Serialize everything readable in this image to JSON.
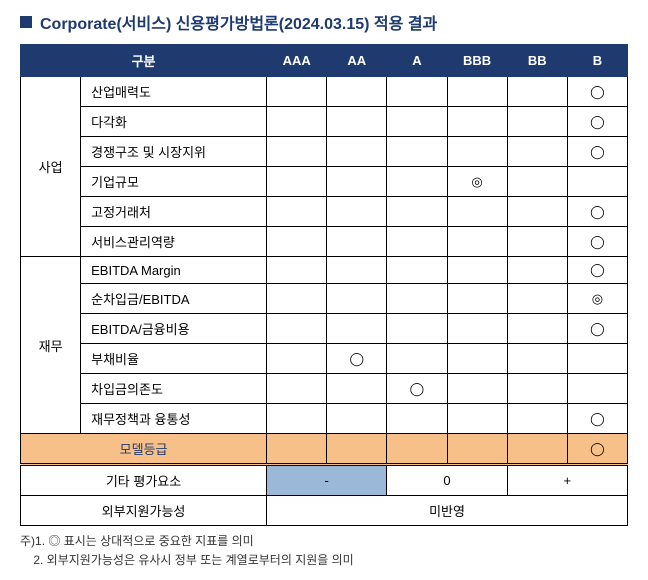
{
  "title": "Corporate(서비스) 신용평가방법론(2024.03.15) 적용 결과",
  "headers": {
    "category": "구분",
    "grades": [
      "AAA",
      "AA",
      "A",
      "BBB",
      "BB",
      "B"
    ]
  },
  "categories": {
    "biz": "사업",
    "fin": "재무"
  },
  "rows": {
    "biz": [
      {
        "label": "산업매력도",
        "marks": [
          "",
          "",
          "",
          "",
          "",
          "◯"
        ]
      },
      {
        "label": "다각화",
        "marks": [
          "",
          "",
          "",
          "",
          "",
          "◯"
        ]
      },
      {
        "label": "경쟁구조 및 시장지위",
        "marks": [
          "",
          "",
          "",
          "",
          "",
          "◯"
        ]
      },
      {
        "label": "기업규모",
        "marks": [
          "",
          "",
          "",
          "◎",
          "",
          ""
        ]
      },
      {
        "label": "고정거래처",
        "marks": [
          "",
          "",
          "",
          "",
          "",
          "◯"
        ]
      },
      {
        "label": "서비스관리역량",
        "marks": [
          "",
          "",
          "",
          "",
          "",
          "◯"
        ]
      }
    ],
    "fin": [
      {
        "label": "EBITDA Margin",
        "marks": [
          "",
          "",
          "",
          "",
          "",
          "◯"
        ]
      },
      {
        "label": "순차입금/EBITDA",
        "marks": [
          "",
          "",
          "",
          "",
          "",
          "◎"
        ]
      },
      {
        "label": "EBITDA/금융비용",
        "marks": [
          "",
          "",
          "",
          "",
          "",
          "◯"
        ]
      },
      {
        "label": "부채비율",
        "marks": [
          "",
          "◯",
          "",
          "",
          "",
          ""
        ]
      },
      {
        "label": "차입금의존도",
        "marks": [
          "",
          "",
          "◯",
          "",
          "",
          ""
        ]
      },
      {
        "label": "재무정책과 융통성",
        "marks": [
          "",
          "",
          "",
          "",
          "",
          "◯"
        ]
      }
    ]
  },
  "modelRow": {
    "label": "모델등급",
    "marks": [
      "",
      "",
      "",
      "",
      "",
      "◯"
    ]
  },
  "otherRow": {
    "label": "기타 평가요소",
    "values": [
      "-",
      "0",
      "+"
    ]
  },
  "supportRow": {
    "label": "외부지원가능성",
    "value": "미반영"
  },
  "footnotes": [
    "주)1. ◎ 표시는 상대적으로 중요한 지표를 의미",
    "    2. 외부지원가능성은 유사시 정부 또는 계열로부터의 지원을 의미"
  ]
}
